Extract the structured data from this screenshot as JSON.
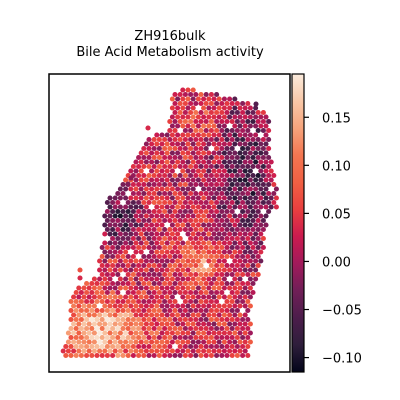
{
  "chart_data": {
    "type": "heatmap",
    "title": "ZH916bulk",
    "subtitle": "Bile Acid Metabolism activity",
    "xlabel": "",
    "ylabel": "",
    "colormap": "rocket",
    "colorbar": {
      "vmin": -0.115,
      "vmax": 0.195,
      "ticks": [
        -0.1,
        -0.05,
        0.0,
        0.05,
        0.1,
        0.15
      ],
      "tick_labels": [
        "−0.10",
        "−0.05",
        "0.00",
        "0.05",
        "0.10",
        "0.15"
      ]
    },
    "grid": false,
    "regions": [
      {
        "name": "lower-left",
        "approx_value": 0.16
      },
      {
        "name": "upper-right",
        "approx_value": -0.06
      },
      {
        "name": "center",
        "approx_value": 0.03
      },
      {
        "name": "left-mid",
        "approx_value": -0.08
      }
    ]
  },
  "colors": {
    "rocket": [
      "#03051a",
      "#2e1e3b",
      "#4c1d4b",
      "#701f57",
      "#a11a5b",
      "#cb1b4f",
      "#e83f3f",
      "#f06043",
      "#f37651",
      "#f6a47c",
      "#f8c8a8",
      "#faebdd"
    ]
  }
}
